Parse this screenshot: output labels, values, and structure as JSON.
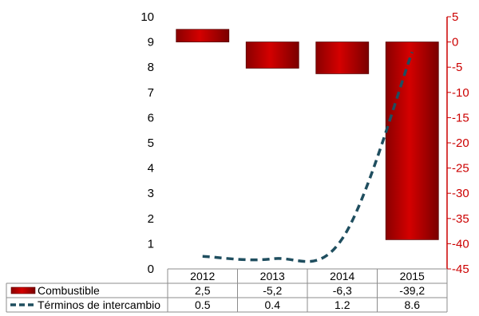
{
  "chart_data": {
    "type": "bar",
    "categories": [
      "2012",
      "2013",
      "2014",
      "2015"
    ],
    "series": [
      {
        "name": "Combustible",
        "kind": "bar",
        "axis": "right",
        "color": "#c00000",
        "values": [
          2.5,
          -5.2,
          -6.3,
          -39.2
        ],
        "labels": [
          "2,5",
          "-5,2",
          "-6,3",
          "-39,2"
        ]
      },
      {
        "name": "Términos de intercambio",
        "kind": "line",
        "style": "dashed",
        "axis": "left",
        "color": "#1f4e5f",
        "values": [
          0.5,
          0.4,
          1.2,
          8.6
        ],
        "labels": [
          "0.5",
          "0.4",
          "1.2",
          "8.6"
        ]
      }
    ],
    "left_axis": {
      "ylim": [
        0,
        10
      ],
      "ticks": [
        "0",
        "1",
        "2",
        "3",
        "4",
        "5",
        "6",
        "7",
        "8",
        "9",
        "10"
      ],
      "color": "#000000"
    },
    "right_axis": {
      "ylim": [
        -45,
        5
      ],
      "ticks": [
        "5",
        "0",
        "-5",
        "-10",
        "-15",
        "-20",
        "-25",
        "-30",
        "-35",
        "-40",
        "-45"
      ],
      "color": "#cc0000"
    },
    "grid": false,
    "legend": "data-table"
  }
}
